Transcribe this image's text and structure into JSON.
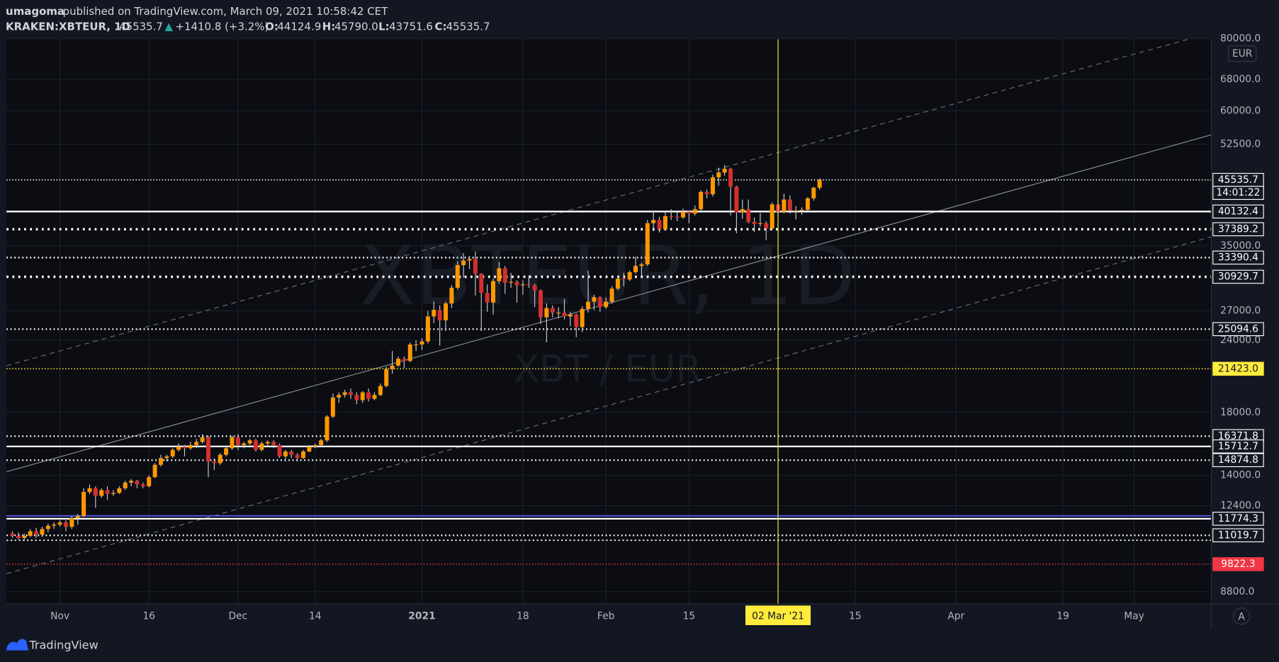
{
  "header": {
    "author": "umagoma",
    "published": "published on TradingView.com, March 09, 2021 10:58:42 CET",
    "symbol": "KRAKEN:XBTEUR, 1D",
    "last": "45535.7",
    "change": "+1410.8 (+3.2%)",
    "ohlc": [
      {
        "key": "O:",
        "value": "44124.9"
      },
      {
        "key": "H:",
        "value": "45790.0"
      },
      {
        "key": "L:",
        "value": "43751.6"
      },
      {
        "key": "C:",
        "value": "45535.7"
      }
    ]
  },
  "chart_data": {
    "type": "candlestick",
    "watermark": "XBTEUR, 1D",
    "watermark_sub": "XBT / EUR",
    "currency": "EUR",
    "scale_button": "A",
    "log_scale": true,
    "grid": true,
    "up_color": "#ff9800",
    "down_color": "#d32f2f",
    "wick_color": "#c8cad0",
    "xlim": [
      "2020-10-23",
      "2021-05-14"
    ],
    "ylim": [
      8380,
      79800
    ],
    "yticks": [
      {
        "value": 80000,
        "label": "80000.0"
      },
      {
        "value": 68000,
        "label": "68000.0"
      },
      {
        "value": 60000,
        "label": "60000.0"
      },
      {
        "value": 52500,
        "label": "52500.0"
      },
      {
        "value": 35000,
        "label": "35000.0"
      },
      {
        "value": 27000,
        "label": "27000.0"
      },
      {
        "value": 24000,
        "label": "24000.0"
      },
      {
        "value": 18000,
        "label": "18000.0"
      },
      {
        "value": 14000,
        "label": "14000.0"
      },
      {
        "value": 12400,
        "label": "12400.0"
      },
      {
        "value": 8800,
        "label": "8800.0"
      }
    ],
    "xticks": [
      {
        "value": "2020-11-01",
        "label": "Nov"
      },
      {
        "value": "2020-11-16",
        "label": "16"
      },
      {
        "value": "2020-12-01",
        "label": "Dec"
      },
      {
        "value": "2020-12-14",
        "label": "14"
      },
      {
        "value": "2021-01-01",
        "label": "2021"
      },
      {
        "value": "2021-01-18",
        "label": "18"
      },
      {
        "value": "2021-02-01",
        "label": "Feb"
      },
      {
        "value": "2021-02-15",
        "label": "15"
      },
      {
        "value": "2021-03-15",
        "label": "15"
      },
      {
        "value": "2021-04-01",
        "label": "Apr"
      },
      {
        "value": "2021-04-19",
        "label": "19"
      },
      {
        "value": "2021-05-01",
        "label": "May"
      }
    ],
    "crosshair": {
      "x": "2021-03-02",
      "label": "02 Mar '21",
      "color": "#ffeb3b"
    },
    "x": [
      "2020-10-24",
      "2020-10-25",
      "2020-10-26",
      "2020-10-27",
      "2020-10-28",
      "2020-10-29",
      "2020-10-30",
      "2020-10-31",
      "2020-11-01",
      "2020-11-02",
      "2020-11-03",
      "2020-11-04",
      "2020-11-05",
      "2020-11-06",
      "2020-11-07",
      "2020-11-08",
      "2020-11-09",
      "2020-11-10",
      "2020-11-11",
      "2020-11-12",
      "2020-11-13",
      "2020-11-14",
      "2020-11-15",
      "2020-11-16",
      "2020-11-17",
      "2020-11-18",
      "2020-11-19",
      "2020-11-20",
      "2020-11-21",
      "2020-11-22",
      "2020-11-23",
      "2020-11-24",
      "2020-11-25",
      "2020-11-26",
      "2020-11-27",
      "2020-11-28",
      "2020-11-29",
      "2020-11-30",
      "2020-12-01",
      "2020-12-02",
      "2020-12-03",
      "2020-12-04",
      "2020-12-05",
      "2020-12-06",
      "2020-12-07",
      "2020-12-08",
      "2020-12-09",
      "2020-12-10",
      "2020-12-11",
      "2020-12-12",
      "2020-12-13",
      "2020-12-14",
      "2020-12-15",
      "2020-12-16",
      "2020-12-17",
      "2020-12-18",
      "2020-12-19",
      "2020-12-20",
      "2020-12-21",
      "2020-12-22",
      "2020-12-23",
      "2020-12-24",
      "2020-12-25",
      "2020-12-26",
      "2020-12-27",
      "2020-12-28",
      "2020-12-29",
      "2020-12-30",
      "2020-12-31",
      "2021-01-01",
      "2021-01-02",
      "2021-01-03",
      "2021-01-04",
      "2021-01-05",
      "2021-01-06",
      "2021-01-07",
      "2021-01-08",
      "2021-01-09",
      "2021-01-10",
      "2021-01-11",
      "2021-01-12",
      "2021-01-13",
      "2021-01-14",
      "2021-01-15",
      "2021-01-16",
      "2021-01-17",
      "2021-01-18",
      "2021-01-19",
      "2021-01-20",
      "2021-01-21",
      "2021-01-22",
      "2021-01-23",
      "2021-01-24",
      "2021-01-25",
      "2021-01-26",
      "2021-01-27",
      "2021-01-28",
      "2021-01-29",
      "2021-01-30",
      "2021-01-31",
      "2021-02-01",
      "2021-02-02",
      "2021-02-03",
      "2021-02-04",
      "2021-02-05",
      "2021-02-06",
      "2021-02-07",
      "2021-02-08",
      "2021-02-09",
      "2021-02-10",
      "2021-02-11",
      "2021-02-12",
      "2021-02-13",
      "2021-02-14",
      "2021-02-15",
      "2021-02-16",
      "2021-02-17",
      "2021-02-18",
      "2021-02-19",
      "2021-02-20",
      "2021-02-21",
      "2021-02-22",
      "2021-02-23",
      "2021-02-24",
      "2021-02-25",
      "2021-02-26",
      "2021-02-27",
      "2021-02-28",
      "2021-03-01",
      "2021-03-02",
      "2021-03-03",
      "2021-03-04",
      "2021-03-05",
      "2021-03-06",
      "2021-03-07",
      "2021-03-08",
      "2021-03-09"
    ],
    "open": [
      11100,
      11000,
      10900,
      11000,
      11200,
      11050,
      11300,
      11450,
      11500,
      11600,
      11400,
      11800,
      11900,
      13100,
      13300,
      12900,
      13200,
      13000,
      13050,
      13300,
      13600,
      13700,
      13500,
      13400,
      13900,
      14600,
      15000,
      15100,
      15500,
      15700,
      15600,
      15800,
      16000,
      16300,
      14800,
      14700,
      15200,
      15600,
      16300,
      15800,
      15900,
      16100,
      15500,
      15900,
      16000,
      15800,
      15100,
      15400,
      15200,
      15000,
      15400,
      15700,
      15800,
      16100,
      17700,
      19100,
      19300,
      19500,
      19300,
      18900,
      19500,
      19000,
      19300,
      20000,
      21400,
      21700,
      22300,
      22100,
      23600,
      23600,
      23900,
      26400,
      27100,
      26000,
      27800,
      29600,
      32400,
      33000,
      33200,
      31300,
      29000,
      27900,
      30400,
      32000,
      30200,
      30300,
      29900,
      30000,
      29900,
      29300,
      26300,
      27300,
      26800,
      26800,
      26400,
      26600,
      25300,
      27200,
      28000,
      28500,
      27400,
      28000,
      29500,
      30700,
      30600,
      31500,
      32300,
      32500,
      38300,
      38800,
      37400,
      39400,
      39300,
      39200,
      40100,
      39800,
      40500,
      43400,
      43000,
      46000,
      46900,
      47600,
      44300,
      40000,
      40500,
      38500,
      38200,
      38300,
      37500,
      41300,
      40100,
      42100,
      40300,
      40300,
      40400,
      42300,
      44124.9
    ],
    "high": [
      11200,
      11150,
      11100,
      11300,
      11350,
      11400,
      11550,
      11600,
      11700,
      11700,
      11900,
      12000,
      13300,
      13500,
      13400,
      13300,
      13400,
      13200,
      13400,
      13700,
      13800,
      13750,
      13600,
      14000,
      14700,
      15200,
      15200,
      15600,
      15900,
      15800,
      16000,
      16200,
      16500,
      16400,
      15000,
      15300,
      15700,
      16400,
      16500,
      16000,
      16200,
      16200,
      16000,
      16100,
      16100,
      15900,
      15500,
      15500,
      15300,
      15500,
      15800,
      15900,
      16200,
      17800,
      19400,
      19500,
      19700,
      19800,
      19500,
      19600,
      19800,
      19500,
      20200,
      21600,
      23000,
      22500,
      22500,
      23800,
      24000,
      24200,
      27000,
      28000,
      27600,
      28000,
      29900,
      32900,
      34000,
      33600,
      34200,
      31400,
      30000,
      30700,
      32800,
      32300,
      31400,
      30500,
      30500,
      31100,
      30100,
      29400,
      27800,
      27600,
      27400,
      28300,
      26900,
      26700,
      27500,
      31700,
      28800,
      28600,
      28500,
      29800,
      31000,
      31400,
      31700,
      33500,
      32700,
      38800,
      40300,
      39300,
      40100,
      40500,
      40000,
      40600,
      40300,
      41100,
      43700,
      43800,
      46500,
      47800,
      48300,
      47800,
      44500,
      42100,
      42100,
      39200,
      39900,
      38600,
      41600,
      41700,
      43100,
      42800,
      41000,
      40800,
      42500,
      44300,
      45790.0
    ],
    "low": [
      10900,
      10850,
      10800,
      10950,
      10900,
      10950,
      11150,
      11300,
      11400,
      11200,
      11300,
      11500,
      11850,
      13000,
      12300,
      12800,
      12700,
      12900,
      13000,
      13200,
      13400,
      13300,
      13300,
      13350,
      13850,
      14500,
      14800,
      15000,
      15400,
      15100,
      15500,
      15600,
      15900,
      13900,
      14300,
      14600,
      15100,
      15500,
      15500,
      15600,
      15800,
      15400,
      15400,
      15700,
      15600,
      15000,
      14800,
      15000,
      14800,
      14950,
      15350,
      15600,
      15700,
      16000,
      17600,
      18700,
      19100,
      19000,
      18600,
      18700,
      18800,
      18900,
      19200,
      19900,
      21000,
      21600,
      21500,
      22000,
      23000,
      23100,
      23700,
      25700,
      23500,
      24900,
      27300,
      29400,
      30800,
      31900,
      28700,
      24900,
      26900,
      26600,
      30100,
      28900,
      29600,
      27900,
      28800,
      29600,
      27400,
      25600,
      23800,
      26300,
      26200,
      26100,
      25400,
      24300,
      24800,
      26800,
      27100,
      26900,
      27200,
      27800,
      29300,
      29800,
      30400,
      31300,
      31100,
      32300,
      37100,
      36900,
      37200,
      38800,
      38600,
      39000,
      38300,
      39500,
      40200,
      42300,
      42600,
      44500,
      46300,
      39500,
      36800,
      39000,
      38300,
      37000,
      37800,
      35800,
      37300,
      39500,
      39900,
      39800,
      38900,
      39600,
      40200,
      41900,
      43751.6
    ],
    "close": [
      11000,
      10900,
      11000,
      11200,
      11050,
      11300,
      11450,
      11500,
      11600,
      11400,
      11800,
      11900,
      13100,
      13300,
      12900,
      13200,
      13000,
      13050,
      13300,
      13600,
      13700,
      13500,
      13400,
      13900,
      14600,
      15000,
      15100,
      15500,
      15700,
      15600,
      15800,
      16000,
      16300,
      14800,
      14700,
      15200,
      15600,
      16300,
      15800,
      15900,
      16100,
      15500,
      15900,
      16000,
      15800,
      15100,
      15400,
      15200,
      15000,
      15400,
      15700,
      15800,
      16100,
      17700,
      19100,
      19300,
      19500,
      19300,
      18900,
      19500,
      19000,
      19300,
      20000,
      21400,
      21700,
      22300,
      22100,
      23600,
      23600,
      23900,
      26400,
      27100,
      26000,
      27800,
      29600,
      32400,
      33000,
      33200,
      31300,
      29000,
      27900,
      30400,
      32000,
      30200,
      30300,
      29900,
      30000,
      29900,
      29300,
      26300,
      27300,
      26800,
      26800,
      26400,
      26600,
      25300,
      27200,
      28000,
      28500,
      27400,
      28000,
      29500,
      30700,
      30600,
      31500,
      32300,
      32500,
      38300,
      38800,
      37400,
      39400,
      39300,
      39200,
      40100,
      39800,
      40500,
      43400,
      43000,
      46000,
      46900,
      47600,
      44300,
      40000,
      40500,
      38500,
      38200,
      38300,
      37500,
      41300,
      40100,
      42100,
      40300,
      40300,
      40400,
      42300,
      44124.9,
      45535.7
    ],
    "levels": [
      {
        "price": 45535.7,
        "color": "#ffffff",
        "style": "dotted",
        "width": 1.5,
        "countdown": "14:01:22"
      },
      {
        "price": 40132.4,
        "color": "#ffffff",
        "style": "solid",
        "width": 2
      },
      {
        "price": 37389.2,
        "color": "#ffffff",
        "style": "dotted",
        "width": 3
      },
      {
        "price": 33390.4,
        "color": "#ffffff",
        "style": "dotted",
        "width": 2
      },
      {
        "price": 30929.7,
        "color": "#ffffff",
        "style": "dotted",
        "width": 3
      },
      {
        "price": 25094.6,
        "color": "#ffffff",
        "style": "dotted",
        "width": 2
      },
      {
        "price": 21423,
        "price_label": "21423.0",
        "color": "#ffeb3b",
        "style": "dotted",
        "width": 1.5,
        "label_fill": "#ffeb3b",
        "label_text_color": "#131722"
      },
      {
        "price": 16371.8,
        "color": "#ffffff",
        "style": "dotted",
        "width": 2
      },
      {
        "price": 15712.7,
        "color": "#ffffff",
        "style": "solid",
        "width": 2
      },
      {
        "price": 14874.8,
        "color": "#ffffff",
        "style": "dotted",
        "width": 2
      },
      {
        "price": 11774.3,
        "color": "#ffffff",
        "style": "solid",
        "width": 2
      },
      {
        "price": 11019.7,
        "color": "#ffffff",
        "style": "dotted",
        "width": 2
      },
      {
        "price": 9822.3,
        "color": "#f23645",
        "style": "dotted",
        "width": 1.5,
        "label_fill": "#f23645",
        "label_text_color": "#ffffff"
      }
    ]
  },
  "footer": {
    "brand": "TradingView"
  }
}
